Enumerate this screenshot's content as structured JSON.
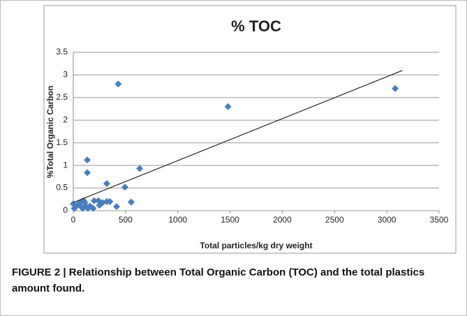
{
  "chart_data": {
    "type": "scatter",
    "title": "% TOC",
    "x_label": "Total particles/kg dry weight",
    "y_label": "%Total Organic Carbon",
    "caption": "FIGURE 2 | Relationship between Total Organic Carbon (TOC) and the total plastics amount found.",
    "color": "#4a7ebb",
    "x": [
      430,
      1480,
      3080,
      134,
      134,
      635,
      320,
      494,
      554,
      414,
      0,
      10,
      30,
      50,
      60,
      80,
      90,
      100,
      110,
      120,
      140,
      160,
      190,
      200,
      240,
      250,
      280,
      320,
      350
    ],
    "values": [
      2.8,
      2.3,
      2.7,
      1.12,
      0.84,
      0.93,
      0.6,
      0.52,
      0.19,
      0.09,
      0.15,
      0.05,
      0.1,
      0.15,
      0.12,
      0.2,
      0.05,
      0.22,
      0.18,
      0.1,
      0.05,
      0.1,
      0.05,
      0.22,
      0.22,
      0.12,
      0.18,
      0.2,
      0.2
    ],
    "trendline": {
      "x": [
        0,
        3150
      ],
      "y": [
        0.18,
        3.1
      ],
      "color": "#222222"
    },
    "xlim": [
      0,
      3500
    ],
    "xticks": [
      0,
      500,
      1000,
      1500,
      2000,
      2500,
      3000,
      3500
    ],
    "ylim": [
      0,
      3.5
    ],
    "yticks": [
      0,
      0.5,
      1,
      1.5,
      2,
      2.5,
      3,
      3.5
    ],
    "grid": true
  }
}
